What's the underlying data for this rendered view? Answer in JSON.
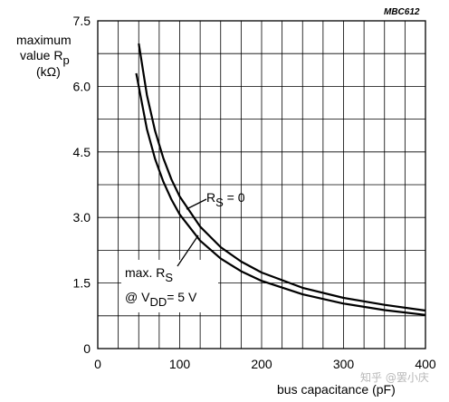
{
  "figure_code": "MBC612",
  "watermark": "知乎 @罢小庆",
  "chart_data": {
    "type": "line",
    "xlabel": "bus capacitance (pF)",
    "ylabel": {
      "line1": "maximum",
      "line2_prefix": "value R",
      "line2_sub": "p",
      "line3": "(kΩ)"
    },
    "xlim": [
      0,
      400
    ],
    "ylim": [
      0,
      7.5
    ],
    "xticks": [
      0,
      100,
      200,
      300,
      400
    ],
    "yticks": [
      0,
      1.5,
      3.0,
      4.5,
      6.0,
      7.5
    ],
    "ytick_labels": [
      "0",
      "1.5",
      "3.0",
      "4.5",
      "6.0",
      "7.5"
    ],
    "grid": true,
    "series": [
      {
        "name": "R_S = 0",
        "x": [
          50,
          60,
          70,
          80,
          90,
          100,
          125,
          150,
          175,
          200,
          250,
          300,
          350,
          400
        ],
        "y": [
          6.98,
          5.8,
          4.98,
          4.36,
          3.87,
          3.48,
          2.79,
          2.32,
          1.99,
          1.74,
          1.39,
          1.16,
          1.0,
          0.87
        ]
      },
      {
        "name": "max. R_S @ V_DD = 5 V",
        "x": [
          47,
          60,
          70,
          80,
          90,
          100,
          125,
          150,
          175,
          200,
          250,
          300,
          350,
          400
        ],
        "y": [
          6.3,
          5.02,
          4.34,
          3.82,
          3.41,
          3.07,
          2.47,
          2.06,
          1.77,
          1.55,
          1.24,
          1.03,
          0.88,
          0.77
        ]
      }
    ],
    "annotations": {
      "rs_zero": {
        "prefix": "R",
        "sub": "S",
        "suffix": " = 0"
      },
      "max_rs": {
        "line1_prefix": "max. R",
        "line1_sub": "S",
        "line2_prefix": "@ V",
        "line2_sub": "DD",
        "line2_suffix": "= 5 V"
      }
    }
  }
}
